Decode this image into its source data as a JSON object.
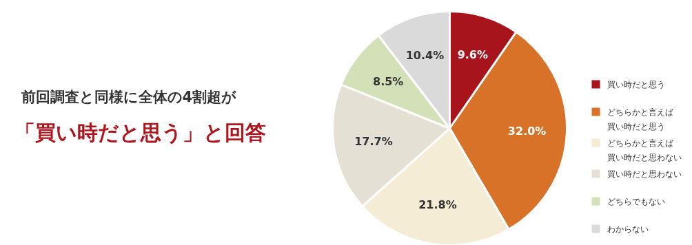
{
  "chart_data": {
    "type": "pie",
    "title": "前回調査と同様に全体の4割超が",
    "subtitle": "「買い時だと思う」と回答",
    "categories": [
      "買い時だと思う",
      "どちらかと言えば買い時だと思う",
      "どちらかと言えば買い時だと思わない",
      "買い時だと思わない",
      "どちらでもない",
      "わからない"
    ],
    "values": [
      9.6,
      32.0,
      21.8,
      17.7,
      8.5,
      10.4
    ],
    "colors": [
      "#a8141c",
      "#d87228",
      "#f5ecd5",
      "#e4e0d3",
      "#d3e0b8",
      "#dadada"
    ],
    "value_labels": [
      "9.6%",
      "32.0%",
      "21.8%",
      "17.7%",
      "8.5%",
      "10.4%"
    ],
    "legend": "right"
  }
}
